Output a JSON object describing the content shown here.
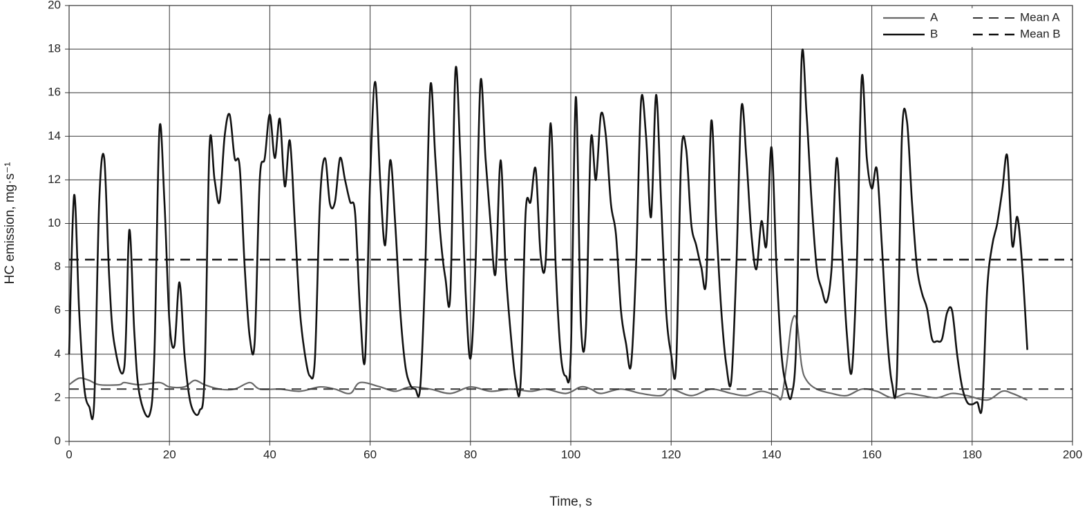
{
  "chart_data": {
    "type": "line",
    "xlabel": "Time, s",
    "ylabel": "HC emission, mg·s⁻¹",
    "xlim": [
      0,
      200
    ],
    "xticks": [
      0,
      20,
      40,
      60,
      80,
      100,
      120,
      140,
      160,
      180,
      200
    ],
    "ylim": [
      0,
      20
    ],
    "yticks": [
      0,
      2,
      4,
      6,
      8,
      10,
      12,
      14,
      16,
      18,
      20
    ],
    "grid": true,
    "legend": "upper right",
    "series": [
      {
        "name": "A",
        "color": "#666666",
        "width": 2.2,
        "dash": false,
        "x": [
          0,
          2,
          4,
          6,
          10,
          11,
          14,
          18,
          20,
          23,
          25,
          27,
          30,
          33,
          36,
          38,
          42,
          46,
          50,
          53,
          56,
          58,
          62,
          65,
          68,
          72,
          76,
          80,
          84,
          88,
          92,
          95,
          99,
          102,
          104,
          106,
          110,
          114,
          118,
          120,
          124,
          128,
          132,
          135,
          138,
          141,
          142,
          143,
          144,
          145,
          146,
          147,
          149,
          152,
          155,
          158,
          161,
          164,
          167,
          170,
          173,
          176,
          179,
          183,
          186,
          188,
          191
        ],
        "values": [
          2.6,
          2.9,
          2.8,
          2.6,
          2.6,
          2.7,
          2.6,
          2.7,
          2.5,
          2.5,
          2.8,
          2.6,
          2.4,
          2.4,
          2.7,
          2.4,
          2.4,
          2.3,
          2.5,
          2.4,
          2.2,
          2.7,
          2.5,
          2.3,
          2.5,
          2.4,
          2.2,
          2.5,
          2.3,
          2.4,
          2.3,
          2.4,
          2.2,
          2.5,
          2.4,
          2.2,
          2.4,
          2.2,
          2.1,
          2.4,
          2.1,
          2.4,
          2.2,
          2.1,
          2.3,
          2.1,
          2.0,
          3.5,
          5.4,
          5.6,
          3.5,
          2.8,
          2.4,
          2.2,
          2.1,
          2.4,
          2.3,
          2.0,
          2.2,
          2.1,
          2.0,
          2.2,
          2.1,
          1.9,
          2.3,
          2.2,
          1.9
        ]
      },
      {
        "name": "B",
        "color": "#111111",
        "width": 2.6,
        "dash": false,
        "x": [
          0,
          1,
          2,
          3,
          4,
          5,
          6,
          7,
          8,
          9,
          11,
          12,
          13,
          14,
          16,
          17,
          18,
          19,
          20,
          21,
          22,
          23,
          24,
          25,
          26,
          27,
          28,
          29,
          30,
          31,
          32,
          33,
          34,
          35,
          36,
          37,
          38,
          39,
          40,
          41,
          42,
          43,
          44,
          45,
          46,
          47,
          48,
          49,
          50,
          51,
          52,
          53,
          54,
          55,
          56,
          57,
          58,
          59,
          60,
          61,
          62,
          63,
          64,
          65,
          66,
          67,
          68,
          69,
          70,
          71,
          72,
          73,
          74,
          75,
          76,
          77,
          78,
          79,
          80,
          81,
          82,
          83,
          84,
          85,
          86,
          87,
          88,
          89,
          90,
          91,
          92,
          93,
          94,
          95,
          96,
          97,
          98,
          99,
          100,
          101,
          102,
          103,
          104,
          105,
          106,
          107,
          108,
          109,
          110,
          111,
          112,
          113,
          114,
          115,
          116,
          117,
          118,
          119,
          120,
          121,
          122,
          123,
          124,
          125,
          126,
          127,
          128,
          129,
          130,
          131,
          132,
          133,
          134,
          135,
          136,
          137,
          138,
          139,
          140,
          141,
          142,
          143,
          144,
          145,
          146,
          147,
          148,
          149,
          150,
          151,
          152,
          153,
          154,
          155,
          156,
          157,
          158,
          159,
          160,
          161,
          162,
          163,
          164,
          165,
          166,
          167,
          168,
          169,
          170,
          171,
          172,
          173,
          174,
          175,
          176,
          177,
          178,
          179,
          180,
          181,
          182,
          183,
          184,
          185,
          186,
          187,
          188,
          189,
          190,
          191
        ],
        "values": [
          4.0,
          11.3,
          6,
          2.5,
          1.6,
          1.8,
          11,
          13,
          7.5,
          4.5,
          3.4,
          9.7,
          5,
          2.2,
          1.2,
          4,
          14.3,
          11,
          5.5,
          4.4,
          7.3,
          4,
          2,
          1.3,
          1.4,
          3,
          13.6,
          12,
          11,
          14,
          15,
          13,
          12.6,
          8,
          4.8,
          4.6,
          12,
          13,
          15,
          13,
          14.8,
          11.7,
          13.8,
          10,
          6,
          4,
          3,
          3.8,
          11,
          13,
          10.9,
          11,
          13,
          12,
          11,
          10.5,
          6,
          3.8,
          12,
          16.5,
          12,
          9,
          12.9,
          10,
          6,
          3.5,
          2.6,
          2.4,
          2.5,
          8,
          16.3,
          13,
          9.5,
          7.5,
          6.8,
          17,
          13,
          7,
          3.8,
          8,
          16.5,
          13,
          10,
          7.7,
          12.9,
          8,
          5,
          2.8,
          2.7,
          10.5,
          11,
          12.5,
          8.5,
          8.3,
          14.6,
          8,
          4,
          3,
          4,
          15.8,
          5.5,
          5.1,
          13.8,
          12,
          15,
          14,
          10.9,
          9.5,
          6,
          4.5,
          3.5,
          8,
          15.6,
          14,
          10.3,
          15.9,
          11,
          6,
          4,
          3.5,
          13,
          13.4,
          10,
          9,
          8,
          7.4,
          14.7,
          10,
          6,
          3.5,
          2.8,
          8,
          15.3,
          13,
          9.5,
          7.9,
          10.1,
          9,
          13.5,
          8,
          4,
          2.5,
          2.1,
          5,
          17.5,
          15,
          11,
          8,
          7,
          6.4,
          8,
          13,
          9,
          5,
          3.2,
          8,
          16.7,
          13,
          11.6,
          12.5,
          9,
          5,
          2.7,
          3,
          14,
          14.7,
          11,
          8,
          6.8,
          6.1,
          4.7,
          4.6,
          4.7,
          5.9,
          6,
          4,
          2.5,
          1.8,
          1.7,
          1.8,
          1.65,
          7,
          9,
          10,
          11.5,
          13.1,
          9,
          10.3,
          8,
          4.2
        ]
      },
      {
        "name": "Mean A",
        "color": "#333333",
        "width": 2,
        "dash": true,
        "x": [
          0,
          200
        ],
        "values": [
          2.4,
          2.4
        ]
      },
      {
        "name": "Mean B",
        "color": "#111111",
        "width": 2.6,
        "dash": true,
        "x": [
          0,
          200
        ],
        "values": [
          8.34,
          8.34
        ]
      }
    ]
  }
}
